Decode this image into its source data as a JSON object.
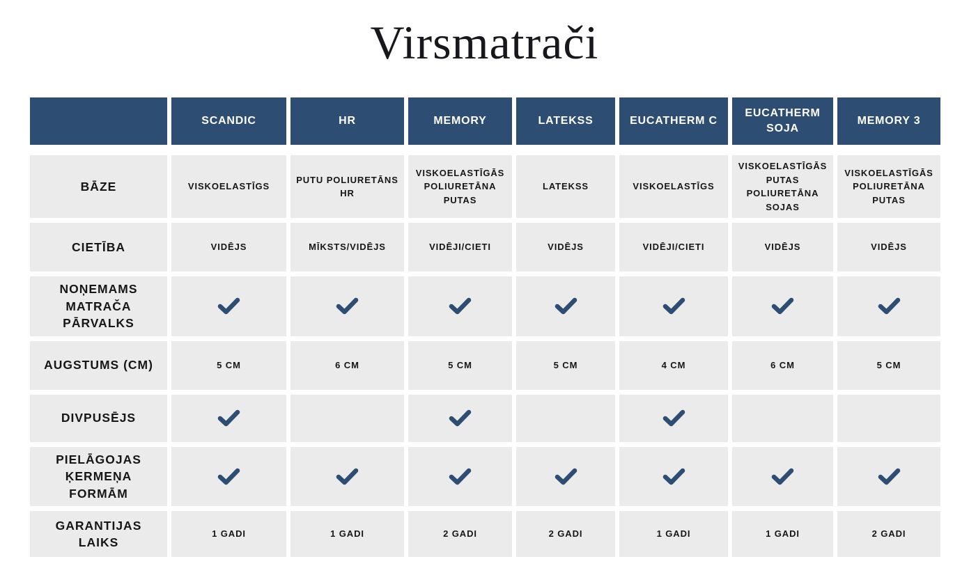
{
  "chart_data": {
    "type": "table",
    "title": "Virsmatrači",
    "check_symbol": "✓",
    "columns": [
      "",
      "SCANDIC",
      "HR",
      "MEMORY",
      "LATEKSS",
      "EUCATHERM C",
      "EUCATHERM SOJA",
      "MEMORY 3"
    ],
    "rows": [
      {
        "label": "BĀZE",
        "cells": [
          "VISKOELASTĪGS",
          "PUTU POLIURETĀNS HR",
          "VISKOELASTĪGĀS POLIURETĀNA PUTAS",
          "LATEKSS",
          "VISKOELASTĪGS",
          "VISKOELASTĪGĀS PUTAS POLIURETĀNA SOJAS",
          "VISKOELASTĪGĀS POLIURETĀNA PUTAS"
        ]
      },
      {
        "label": "CIETĪBA",
        "cells": [
          "VIDĒJS",
          "MĪKSTS/VIDĒJS",
          "VIDĒJI/CIETI",
          "VIDĒJS",
          "VIDĒJI/CIETI",
          "VIDĒJS",
          "VIDĒJS"
        ]
      },
      {
        "label": "NOŅEMAMS MATRAČA PĀRVALKS",
        "cells": [
          "✓",
          "✓",
          "✓",
          "✓",
          "✓",
          "✓",
          "✓"
        ]
      },
      {
        "label": "AUGSTUMS (CM)",
        "cells": [
          "5 CM",
          "6 CM",
          "5 CM",
          "5 CM",
          "4 CM",
          "6 CM",
          "5 CM"
        ]
      },
      {
        "label": "DIVPUSĒJS",
        "cells": [
          "✓",
          "",
          "✓",
          "",
          "✓",
          "",
          ""
        ]
      },
      {
        "label": "PIELĀGOJAS ĶERMEŅA FORMĀM",
        "cells": [
          "✓",
          "✓",
          "✓",
          "✓",
          "✓",
          "✓",
          "✓"
        ]
      },
      {
        "label": "GARANTIJAS LAIKS",
        "cells": [
          "1 GADI",
          "1 GADI",
          "2 GADI",
          "2 GADI",
          "1 GADI",
          "1 GADI",
          "2 GADI"
        ]
      }
    ],
    "colors": {
      "header_bg": "#2E4D72",
      "header_text": "#FFFFFF",
      "cell_bg": "#EBEBEB",
      "cell_text": "#161616",
      "check": "#2E4D72"
    }
  }
}
